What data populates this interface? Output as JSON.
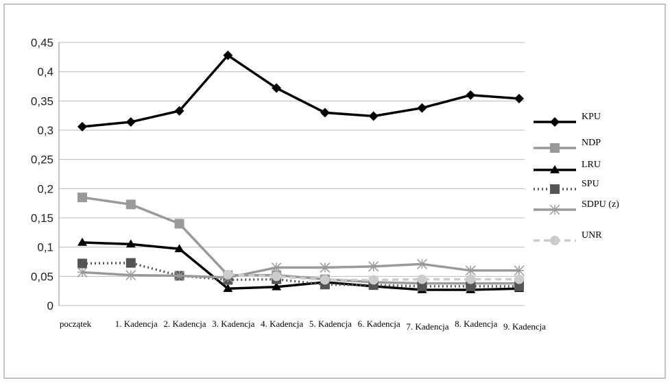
{
  "chart_data": {
    "type": "line",
    "categories": [
      "początek",
      "1. Kadencja",
      "2. Kadencja",
      "3. Kadencja",
      "4. Kadencja",
      "5. Kadencja",
      "6. Kadencja",
      "7. Kadencja",
      "8. Kadencja",
      "9. Kadencja"
    ],
    "ylim": [
      0,
      0.45
    ],
    "yticks": [
      0,
      {
        "value": 0.05,
        "label": "0,05"
      },
      {
        "value": 0.1,
        "label": "0,1"
      },
      {
        "value": 0.15,
        "label": "0,15"
      },
      {
        "value": 0.2,
        "label": "0,2"
      },
      {
        "value": 0.25,
        "label": "0,25"
      },
      {
        "value": 0.3,
        "label": "0,3"
      },
      {
        "value": 0.35,
        "label": "0,35"
      },
      {
        "value": 0.4,
        "label": "0,4"
      },
      {
        "value": 0.45,
        "label": "0,45"
      }
    ],
    "grid": true,
    "legend": "right",
    "series": [
      {
        "name": "KPU",
        "color": "#000000",
        "marker": "diamond",
        "dash": "solid",
        "values": [
          0.306,
          0.314,
          0.333,
          0.428,
          0.372,
          0.33,
          0.324,
          0.338,
          0.36,
          0.354
        ]
      },
      {
        "name": "NDP",
        "color": "#999999",
        "marker": "square",
        "dash": "solid",
        "values": [
          0.185,
          0.173,
          0.14,
          0.052,
          0.052,
          0.045,
          0.04,
          0.038,
          0.038,
          0.038
        ]
      },
      {
        "name": "LRU",
        "color": "#000000",
        "marker": "triangle",
        "dash": "solid",
        "values": [
          0.108,
          0.105,
          0.097,
          0.029,
          0.032,
          0.04,
          0.033,
          0.027,
          0.027,
          0.029
        ]
      },
      {
        "name": "SPU",
        "color": "#555555",
        "marker": "square",
        "dash": "dotted",
        "values": [
          0.072,
          0.073,
          0.051,
          0.044,
          0.045,
          0.036,
          0.035,
          0.033,
          0.033,
          0.033
        ]
      },
      {
        "name": "SDPU (z)",
        "color": "#999999",
        "marker": "asterisk",
        "dash": "solid",
        "values": [
          0.057,
          0.052,
          0.051,
          0.048,
          0.065,
          0.065,
          0.067,
          0.071,
          0.06,
          0.06
        ]
      },
      {
        "name": "UNR",
        "color": "#cccccc",
        "marker": "circle",
        "dash": "dashed",
        "values": [
          null,
          null,
          null,
          0.053,
          0.05,
          0.044,
          0.044,
          0.045,
          0.045,
          0.045
        ]
      }
    ]
  }
}
